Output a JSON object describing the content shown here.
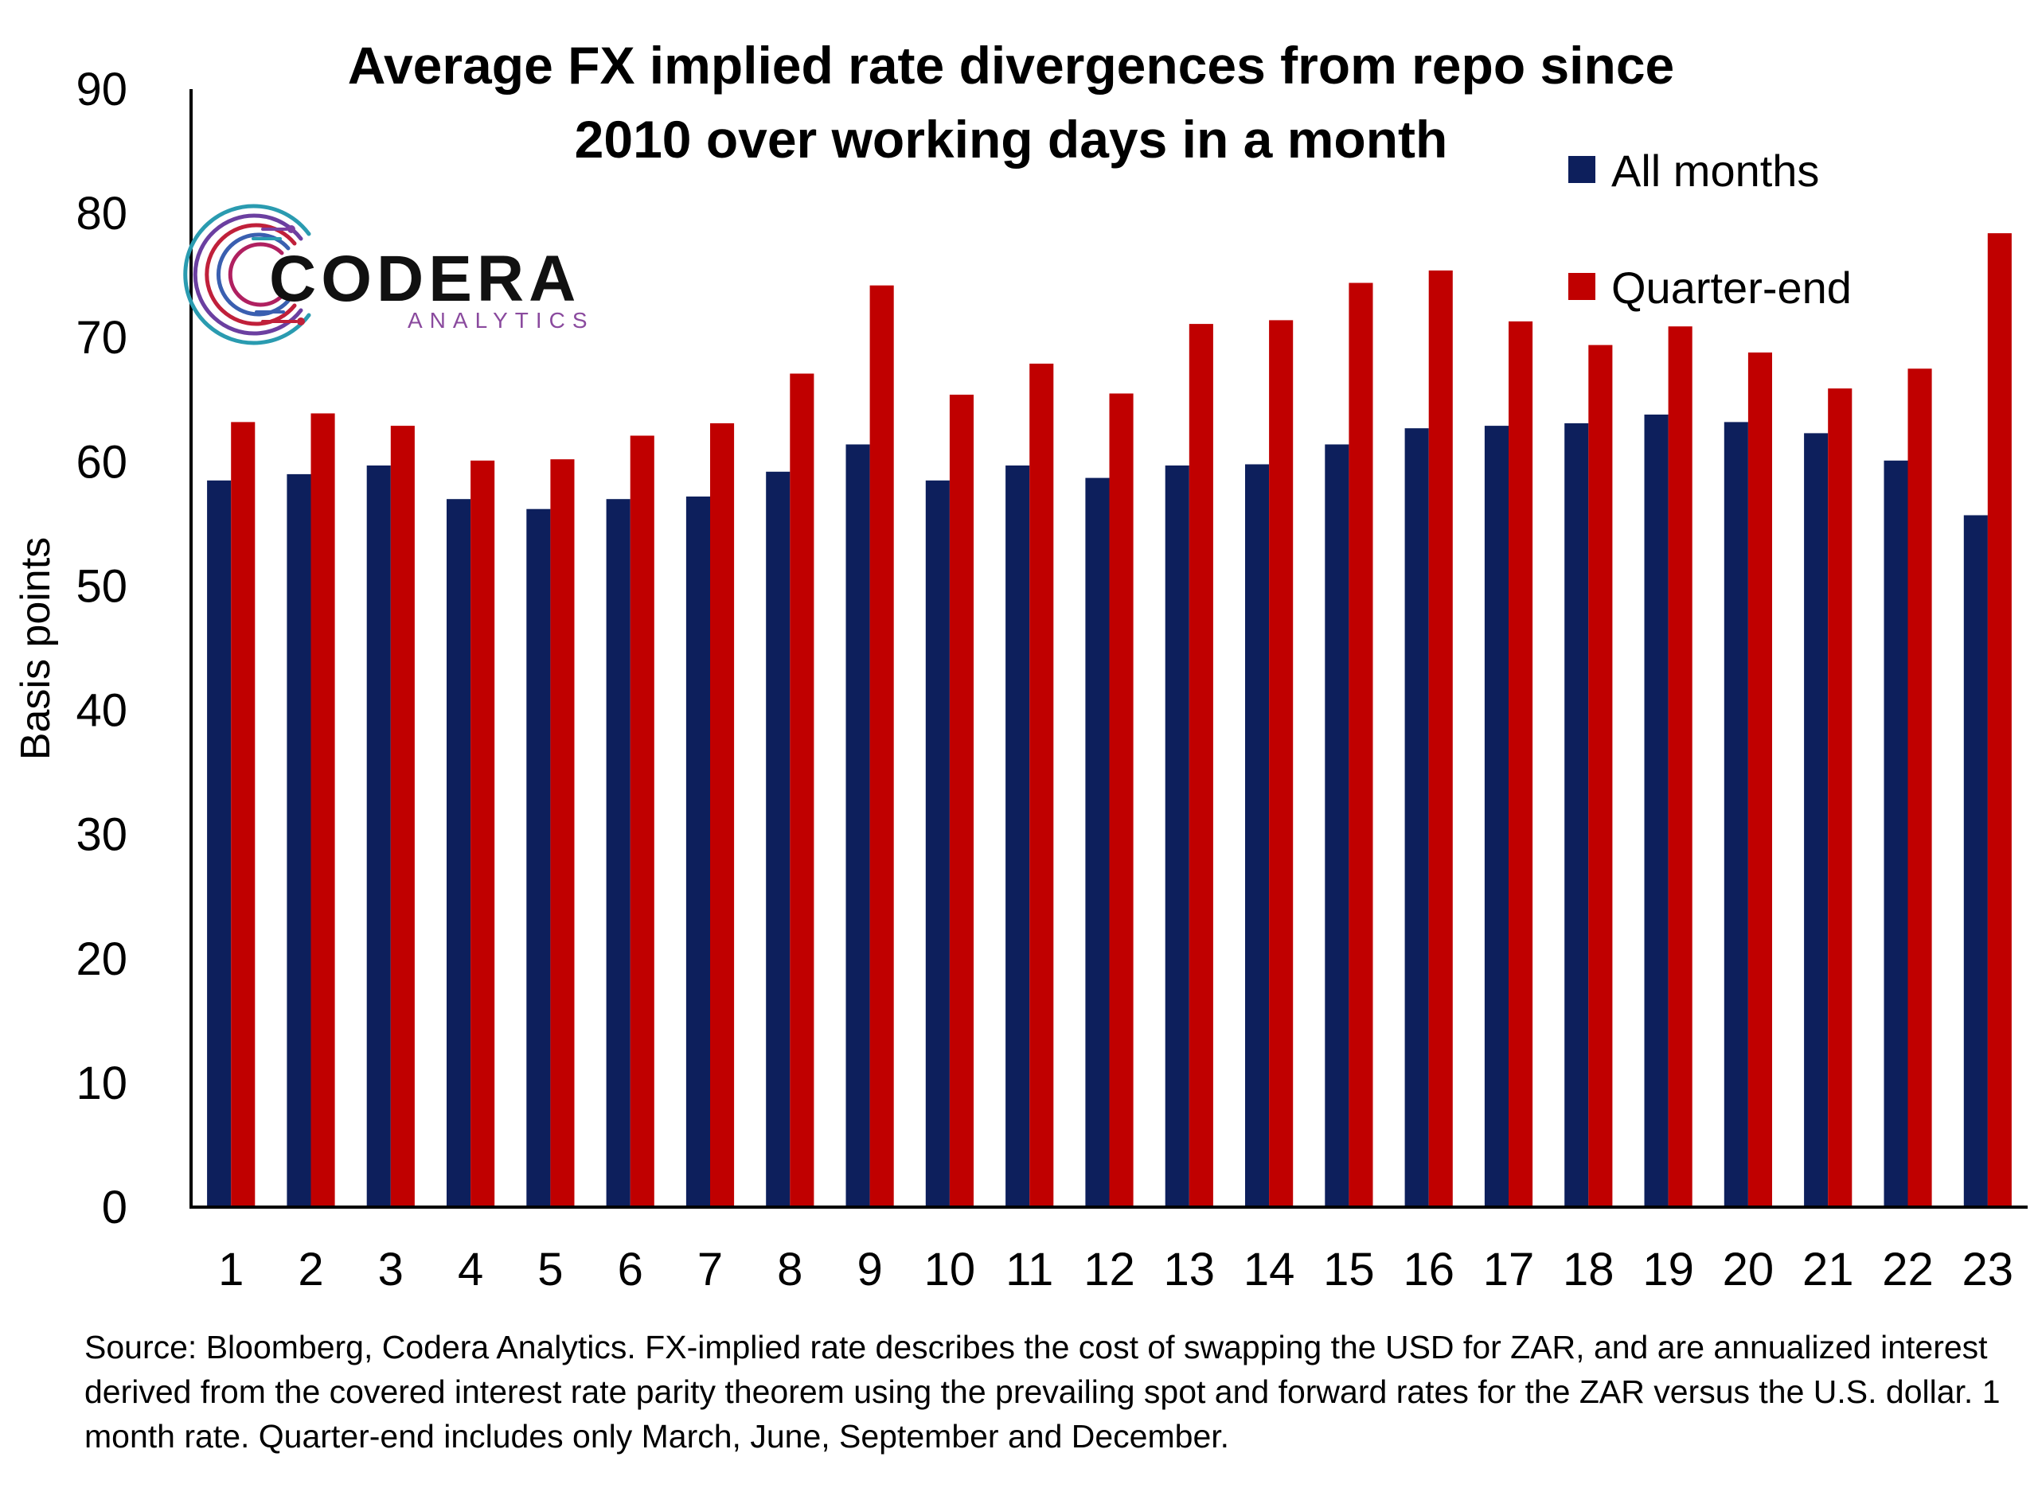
{
  "chart_data": {
    "type": "bar",
    "title_lines": [
      "Average FX implied rate divergences from repo since",
      "2010  over working days in a month"
    ],
    "ylabel": "Basis points",
    "xlabel": "",
    "ylim": [
      0,
      90
    ],
    "yticks": [
      0,
      10,
      20,
      30,
      40,
      50,
      60,
      70,
      80,
      90
    ],
    "grid": false,
    "legend_position": "top-right",
    "categories": [
      "1",
      "2",
      "3",
      "4",
      "5",
      "6",
      "7",
      "8",
      "9",
      "10",
      "11",
      "12",
      "13",
      "14",
      "15",
      "16",
      "17",
      "18",
      "19",
      "20",
      "21",
      "22",
      "23"
    ],
    "series": [
      {
        "name": "All months",
        "color": "#0d1f5c",
        "values": [
          58.5,
          59,
          59.7,
          57,
          56.2,
          57,
          57.2,
          59.2,
          61.4,
          58.5,
          59.7,
          58.7,
          59.7,
          59.8,
          61.4,
          62.7,
          62.9,
          63.1,
          63.8,
          63.2,
          62.3,
          60.1,
          55.7
        ]
      },
      {
        "name": "Quarter-end",
        "color": "#c00000",
        "values": [
          63.2,
          63.9,
          62.9,
          60.1,
          60.2,
          62.1,
          63.1,
          67.1,
          74.2,
          65.4,
          67.9,
          65.5,
          71.1,
          71.4,
          74.4,
          75.4,
          71.3,
          69.4,
          70.9,
          68.8,
          65.9,
          67.5,
          78.4
        ]
      }
    ]
  },
  "logo": {
    "name": "CODERA",
    "sub": "ANALYTICS"
  },
  "source_note": "Source: Bloomberg, Codera Analytics. FX-implied rate describes the cost of swapping the USD for ZAR, and are annualized interest derived from the covered interest rate parity theorem using the prevailing spot and forward rates for the ZAR versus the U.S. dollar. 1 month rate. Quarter-end includes only March, June, September and December."
}
